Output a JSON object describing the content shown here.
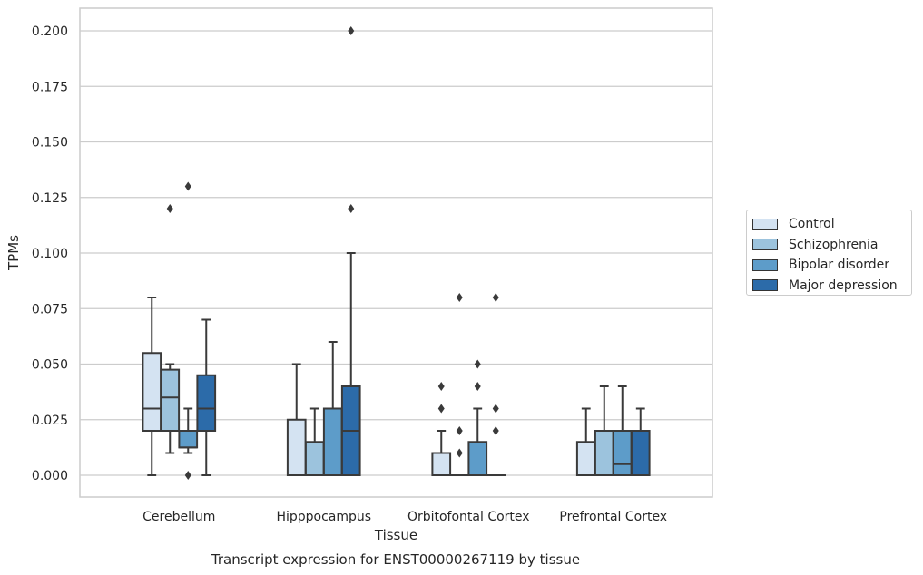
{
  "chart_data": {
    "type": "box",
    "title": "",
    "xlabel": "Tissue",
    "ylabel": "TPMs",
    "caption": "Transcript expression for ENST00000267119 by tissue",
    "ylim": [
      -0.01,
      0.21
    ],
    "yticks": [
      "0.000",
      "0.025",
      "0.050",
      "0.075",
      "0.100",
      "0.125",
      "0.150",
      "0.175",
      "0.200"
    ],
    "ytick_values": [
      0,
      0.025,
      0.05,
      0.075,
      0.1,
      0.125,
      0.15,
      0.175,
      0.2
    ],
    "grid": "horizontal",
    "legend_position": "right",
    "categories": [
      "Cerebellum",
      "Hipppocampus",
      "Orbitofontal Cortex",
      "Prefrontal Cortex"
    ],
    "series": [
      {
        "name": "Control",
        "color": "#d4e3f2",
        "boxes": [
          {
            "whislo": 0.0,
            "q1": 0.02,
            "med": 0.03,
            "q3": 0.055,
            "whishi": 0.08,
            "fliers": []
          },
          {
            "whislo": 0.0,
            "q1": 0.0,
            "med": 0.0,
            "q3": 0.025,
            "whishi": 0.05,
            "fliers": []
          },
          {
            "whislo": 0.0,
            "q1": 0.0,
            "med": 0.0,
            "q3": 0.01,
            "whishi": 0.02,
            "fliers": [
              0.03,
              0.04
            ]
          },
          {
            "whislo": 0.0,
            "q1": 0.0,
            "med": 0.0,
            "q3": 0.015,
            "whishi": 0.03,
            "fliers": []
          }
        ]
      },
      {
        "name": "Schizophrenia",
        "color": "#9cc3dd",
        "boxes": [
          {
            "whislo": 0.01,
            "q1": 0.02,
            "med": 0.035,
            "q3": 0.0475,
            "whishi": 0.05,
            "fliers": [
              0.12
            ]
          },
          {
            "whislo": 0.0,
            "q1": 0.0,
            "med": 0.0,
            "q3": 0.015,
            "whishi": 0.03,
            "fliers": []
          },
          {
            "whislo": 0.0,
            "q1": 0.0,
            "med": 0.0,
            "q3": 0.0,
            "whishi": 0.0,
            "fliers": [
              0.01,
              0.02,
              0.08
            ]
          },
          {
            "whislo": 0.0,
            "q1": 0.0,
            "med": 0.0,
            "q3": 0.02,
            "whishi": 0.04,
            "fliers": []
          }
        ]
      },
      {
        "name": "Bipolar disorder",
        "color": "#5d9cc9",
        "boxes": [
          {
            "whislo": 0.01,
            "q1": 0.0125,
            "med": 0.0125,
            "q3": 0.02,
            "whishi": 0.03,
            "fliers": [
              0.0,
              0.13
            ]
          },
          {
            "whislo": 0.0,
            "q1": 0.0,
            "med": 0.0,
            "q3": 0.03,
            "whishi": 0.06,
            "fliers": []
          },
          {
            "whislo": 0.0,
            "q1": 0.0,
            "med": 0.0,
            "q3": 0.015,
            "whishi": 0.03,
            "fliers": [
              0.04,
              0.05
            ]
          },
          {
            "whislo": 0.0,
            "q1": 0.0,
            "med": 0.005,
            "q3": 0.02,
            "whishi": 0.04,
            "fliers": []
          }
        ]
      },
      {
        "name": "Major depression",
        "color": "#2c6ba9",
        "boxes": [
          {
            "whislo": 0.0,
            "q1": 0.02,
            "med": 0.03,
            "q3": 0.045,
            "whishi": 0.07,
            "fliers": []
          },
          {
            "whislo": 0.0,
            "q1": 0.0,
            "med": 0.02,
            "q3": 0.04,
            "whishi": 0.1,
            "fliers": [
              0.12,
              0.2
            ]
          },
          {
            "whislo": 0.0,
            "q1": 0.0,
            "med": 0.0,
            "q3": 0.0,
            "whishi": 0.0,
            "fliers": [
              0.02,
              0.03,
              0.08
            ]
          },
          {
            "whislo": 0.0,
            "q1": 0.0,
            "med": 0.0,
            "q3": 0.02,
            "whishi": 0.03,
            "fliers": []
          }
        ]
      }
    ]
  }
}
